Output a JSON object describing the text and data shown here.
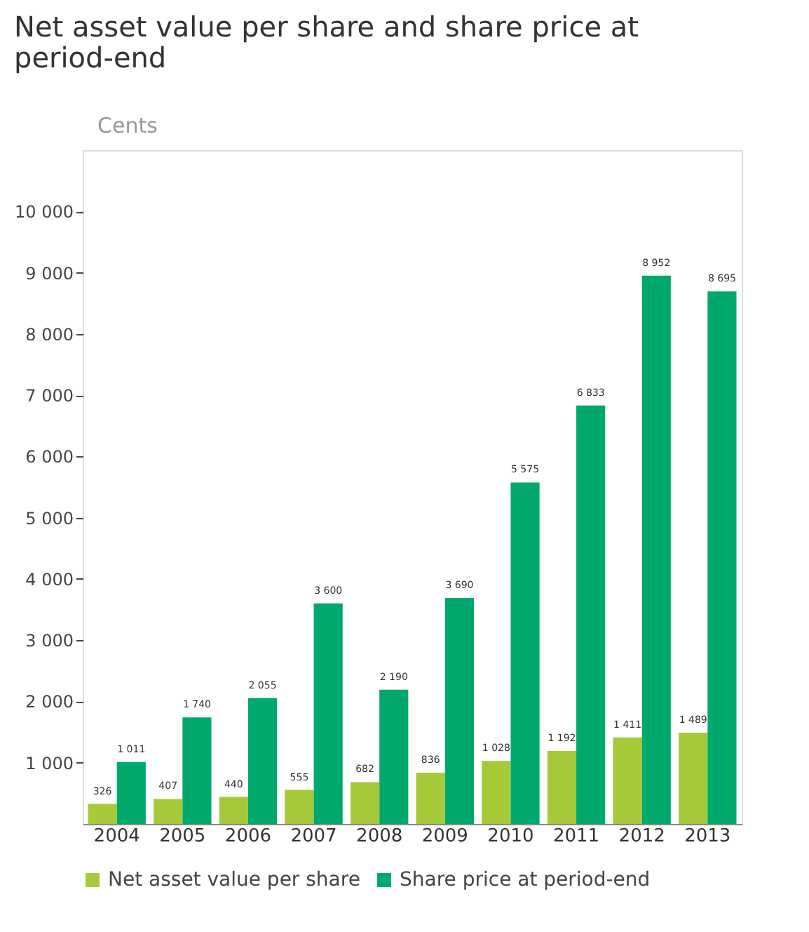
{
  "chart_data": {
    "type": "bar",
    "title": "Net asset value per share and share price at period-end",
    "ylabel": "Cents",
    "categories": [
      "2004",
      "2005",
      "2006",
      "2007",
      "2008",
      "2009",
      "2010",
      "2011",
      "2012",
      "2013"
    ],
    "series": [
      {
        "name": "Net asset value per share",
        "color": "#a6c93a",
        "values": [
          326,
          407,
          440,
          555,
          682,
          836,
          1028,
          1192,
          1411,
          1489
        ],
        "value_labels": [
          "326",
          "407",
          "440",
          "555",
          "682",
          "836",
          "1 028",
          "1 192",
          "1 411",
          "1 489"
        ]
      },
      {
        "name": "Share price at period-end",
        "color": "#00a96b",
        "values": [
          1011,
          1740,
          2055,
          3600,
          2190,
          3690,
          5575,
          6833,
          8952,
          8695
        ],
        "value_labels": [
          "1 011",
          "1 740",
          "2 055",
          "3 600",
          "2 190",
          "3 690",
          "5 575",
          "6 833",
          "8 952",
          "8 695"
        ]
      }
    ],
    "ylim": [
      0,
      11000
    ],
    "yticks": [
      {
        "value": 1000,
        "label": "1 000"
      },
      {
        "value": 2000,
        "label": "2 000"
      },
      {
        "value": 3000,
        "label": "3 000"
      },
      {
        "value": 4000,
        "label": "4 000"
      },
      {
        "value": 5000,
        "label": "5 000"
      },
      {
        "value": 6000,
        "label": "6 000"
      },
      {
        "value": 7000,
        "label": "7 000"
      },
      {
        "value": 8000,
        "label": "8 000"
      },
      {
        "value": 9000,
        "label": "9 000"
      },
      {
        "value": 10000,
        "label": "10 000"
      }
    ],
    "grid": false,
    "legend": "bottom"
  }
}
